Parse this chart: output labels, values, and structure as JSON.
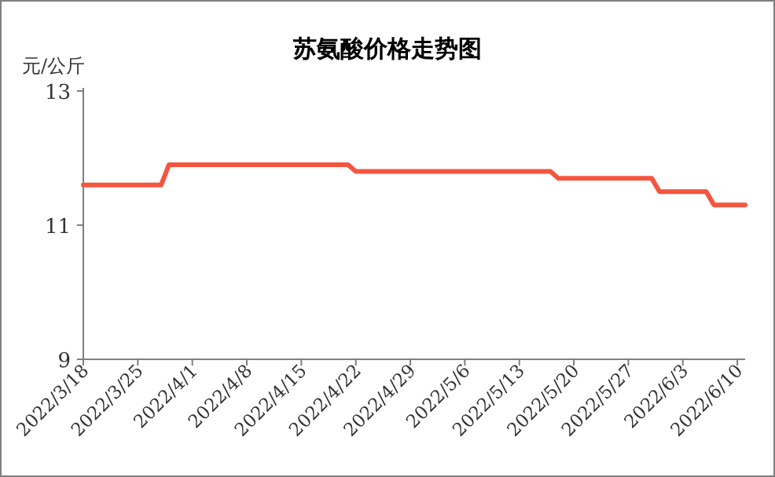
{
  "chart_data": {
    "type": "line",
    "title": "苏氨酸价格走势图",
    "ylabel": "元/公斤",
    "x": [
      "2022-03-18",
      "2022-03-28",
      "2022-03-29",
      "2022-04-21",
      "2022-04-22",
      "2022-05-17",
      "2022-05-18",
      "2022-05-30",
      "2022-05-31",
      "2022-06-06",
      "2022-06-07",
      "2022-06-11"
    ],
    "series": [
      {
        "color": "#f4553f",
        "values": [
          11.6,
          11.6,
          11.9,
          11.9,
          11.8,
          11.8,
          11.7,
          11.7,
          11.5,
          11.5,
          11.3,
          11.3
        ]
      }
    ],
    "xlim": [
      "2022-03-18",
      "2022-06-11"
    ],
    "xticks": [
      {
        "value": "2022-03-18",
        "label": "2022/3/18"
      },
      {
        "value": "2022-03-25",
        "label": "2022/3/25"
      },
      {
        "value": "2022-04-01",
        "label": "2022/4/1"
      },
      {
        "value": "2022-04-08",
        "label": "2022/4/8"
      },
      {
        "value": "2022-04-15",
        "label": "2022/4/15"
      },
      {
        "value": "2022-04-22",
        "label": "2022/4/22"
      },
      {
        "value": "2022-04-29",
        "label": "2022/4/29"
      },
      {
        "value": "2022-05-06",
        "label": "2022/5/6"
      },
      {
        "value": "2022-05-13",
        "label": "2022/5/13"
      },
      {
        "value": "2022-05-20",
        "label": "2022/5/20"
      },
      {
        "value": "2022-05-27",
        "label": "2022/5/27"
      },
      {
        "value": "2022-06-03",
        "label": "2022/6/3"
      },
      {
        "value": "2022-06-10",
        "label": "2022/6/10"
      }
    ],
    "ylim": [
      9,
      13
    ],
    "yticks": [
      9,
      11,
      13
    ],
    "grid": false,
    "marker": "none",
    "line_style": "solid"
  }
}
